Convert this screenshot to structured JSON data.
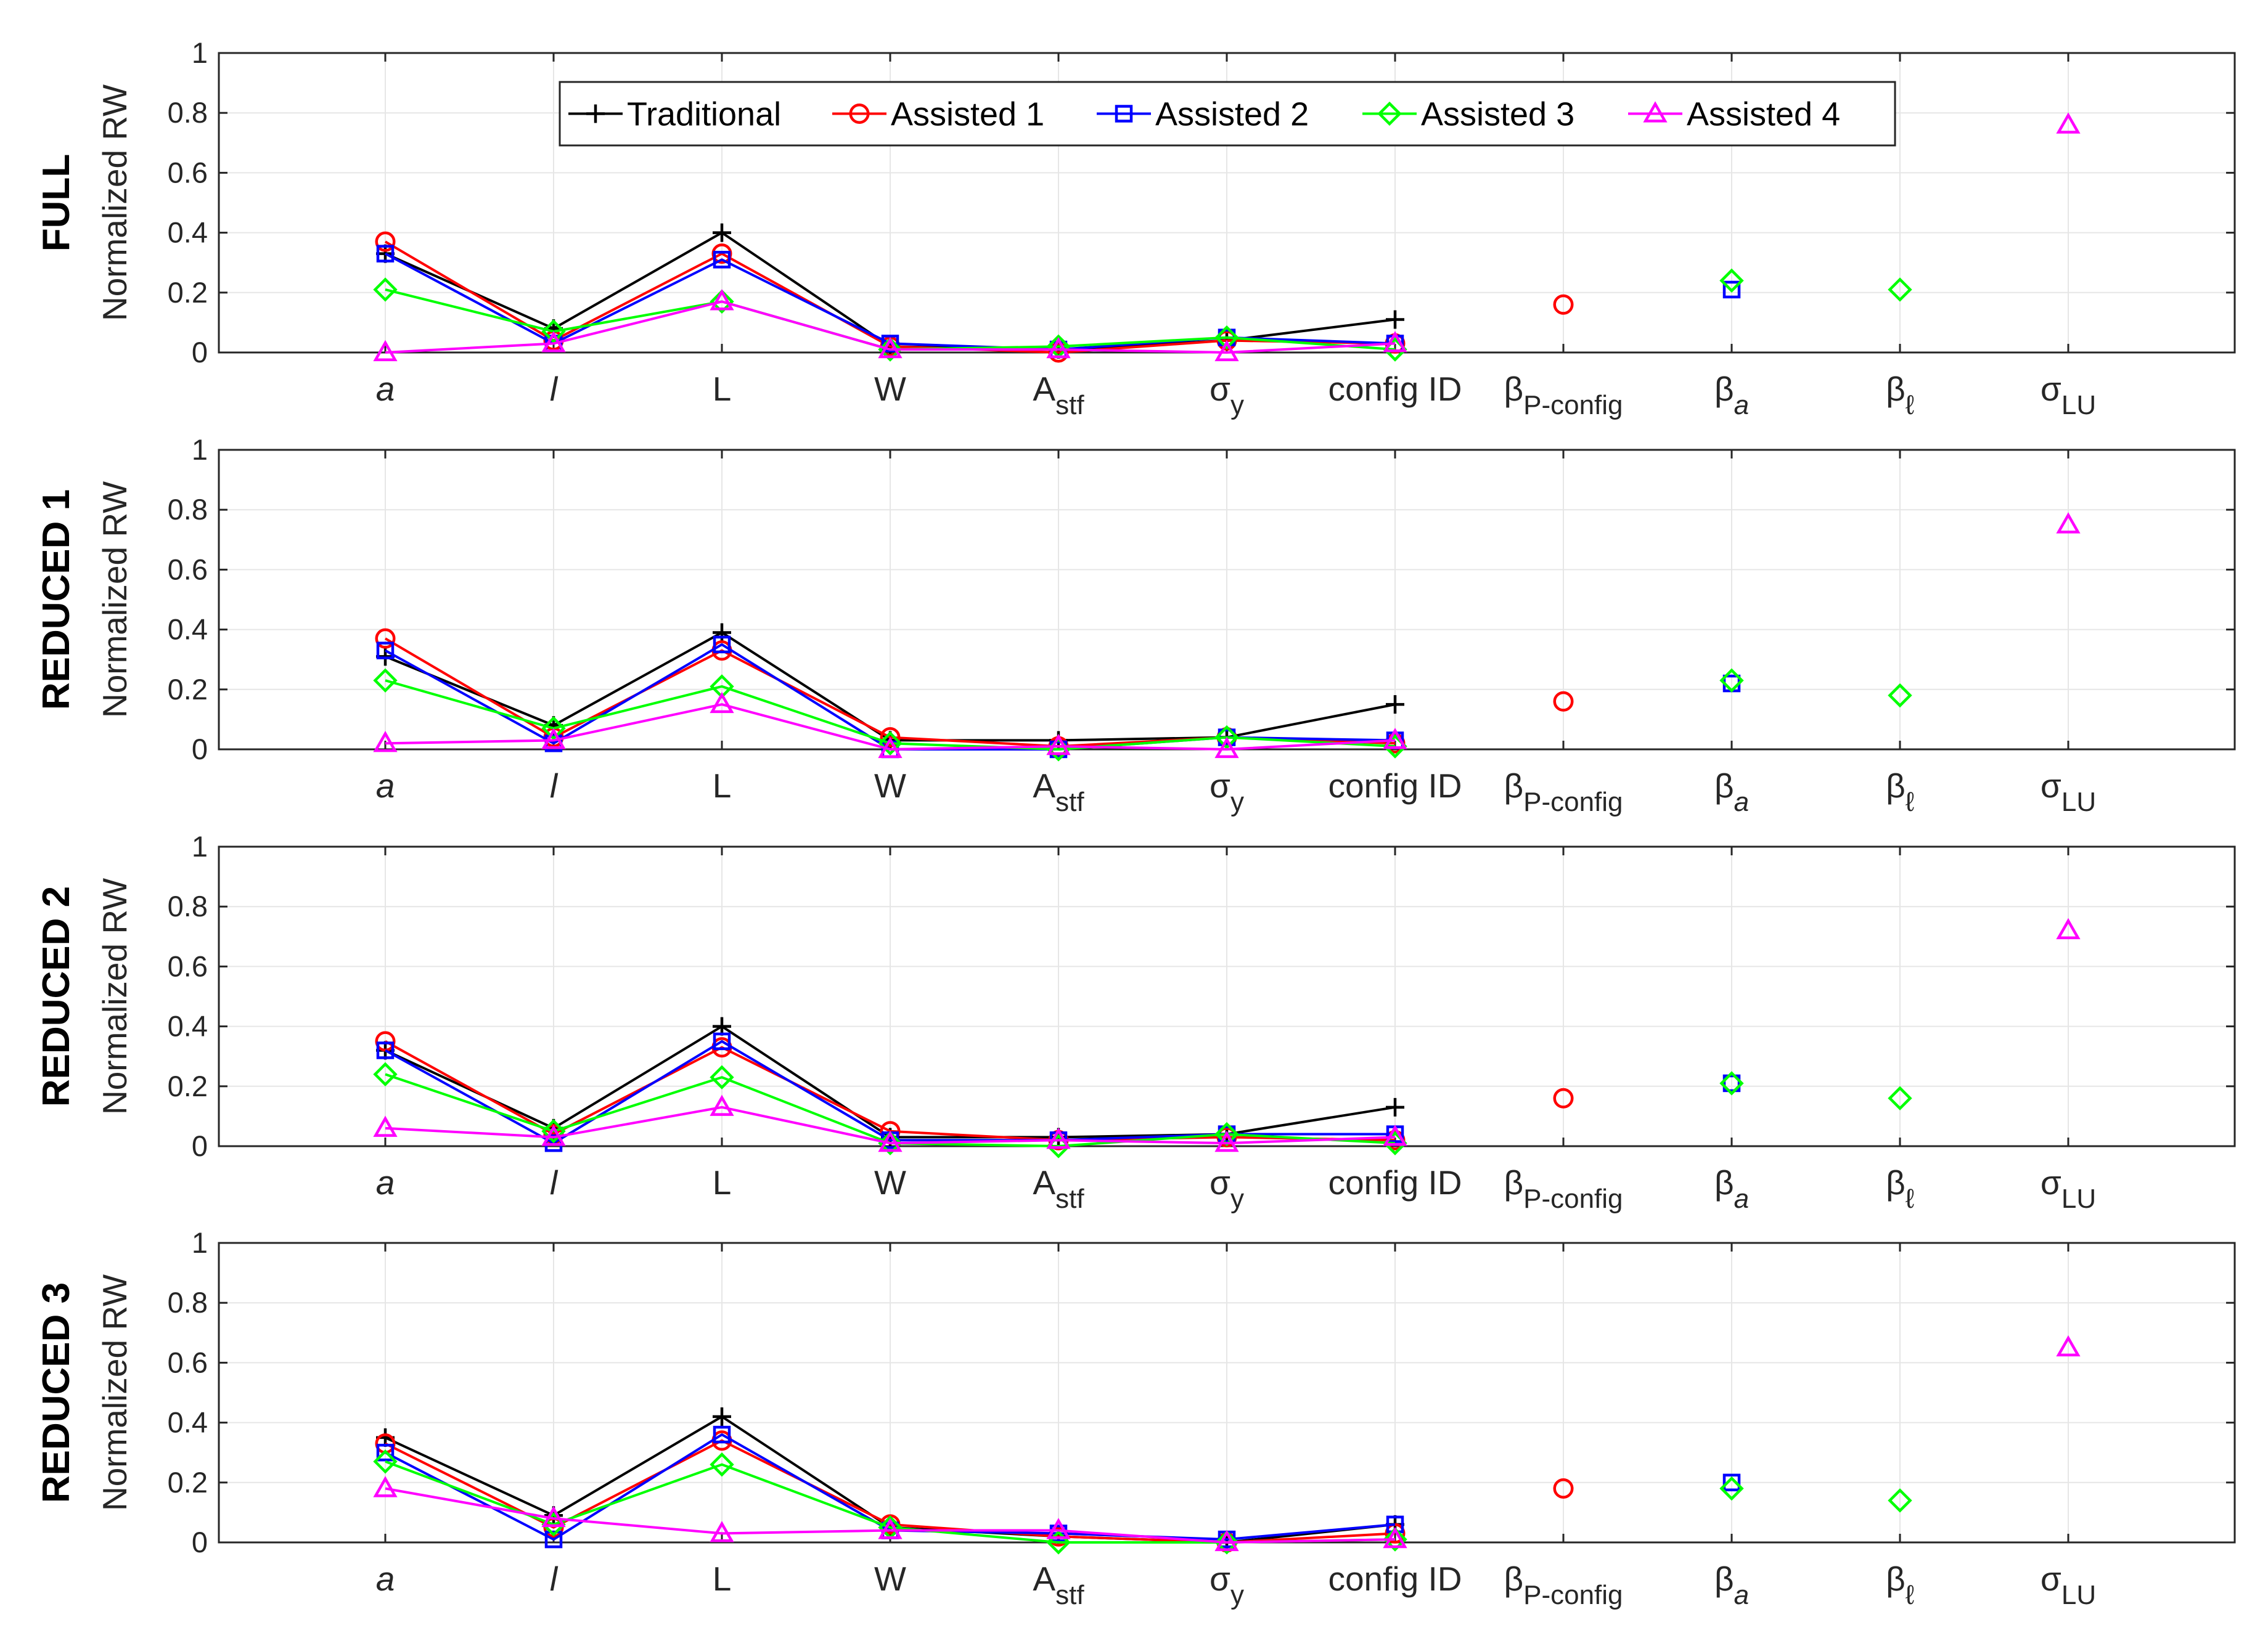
{
  "chart_data": {
    "type": "line",
    "ylabel": "Normalized RW",
    "ylim": [
      0,
      1
    ],
    "yticks": [
      "0",
      "0.2",
      "0.4",
      "0.6",
      "0.8",
      "1"
    ],
    "grid": true,
    "legend": {
      "placement": "top-center",
      "entries": [
        {
          "name": "Traditional",
          "color": "#000000",
          "marker": "plus"
        },
        {
          "name": "Assisted 1",
          "color": "#ff0000",
          "marker": "circle"
        },
        {
          "name": "Assisted 2",
          "color": "#0000ff",
          "marker": "square"
        },
        {
          "name": "Assisted 3",
          "color": "#00ff00",
          "marker": "diamond"
        },
        {
          "name": "Assisted 4",
          "color": "#ff00ff",
          "marker": "triangle"
        }
      ]
    },
    "categories": [
      {
        "main": "a",
        "sub": "",
        "italic": true
      },
      {
        "main": "l",
        "sub": "",
        "italic": true
      },
      {
        "main": "L",
        "sub": "",
        "italic": false
      },
      {
        "main": "W",
        "sub": "",
        "italic": false
      },
      {
        "main": "A",
        "sub": "stf",
        "italic": false
      },
      {
        "main": "σ",
        "sub": "y",
        "italic": false
      },
      {
        "main": "config ID",
        "sub": "",
        "italic": false
      },
      {
        "main": "β",
        "sub": "P-config",
        "italic": false
      },
      {
        "main": "β",
        "sub": "a",
        "italic": false,
        "subItalic": true
      },
      {
        "main": "β",
        "sub": "ℓ",
        "italic": false
      },
      {
        "main": "σ",
        "sub": "LU",
        "italic": false
      }
    ],
    "panels": [
      {
        "row_label": "FULL",
        "series": [
          {
            "name": "Traditional",
            "values": [
              0.33,
              0.08,
              0.4,
              0.02,
              0.01,
              0.04,
              0.11,
              null,
              null,
              null,
              null
            ]
          },
          {
            "name": "Assisted 1",
            "values": [
              0.37,
              0.04,
              0.33,
              0.02,
              0.0,
              0.04,
              0.03,
              0.16,
              null,
              null,
              null
            ]
          },
          {
            "name": "Assisted 2",
            "values": [
              0.33,
              0.03,
              0.31,
              0.03,
              0.01,
              0.05,
              0.03,
              null,
              0.21,
              null,
              null
            ]
          },
          {
            "name": "Assisted 3",
            "values": [
              0.21,
              0.07,
              0.17,
              0.01,
              0.02,
              0.05,
              0.01,
              null,
              0.24,
              0.21,
              null
            ]
          },
          {
            "name": "Assisted 4",
            "values": [
              0.0,
              0.03,
              0.17,
              0.01,
              0.01,
              0.0,
              0.03,
              null,
              null,
              null,
              0.76
            ]
          }
        ]
      },
      {
        "row_label": "REDUCED 1",
        "series": [
          {
            "name": "Traditional",
            "values": [
              0.31,
              0.08,
              0.39,
              0.03,
              0.03,
              0.04,
              0.15,
              null,
              null,
              null,
              null
            ]
          },
          {
            "name": "Assisted 1",
            "values": [
              0.37,
              0.04,
              0.33,
              0.04,
              0.01,
              0.04,
              0.02,
              0.16,
              null,
              null,
              null
            ]
          },
          {
            "name": "Assisted 2",
            "values": [
              0.33,
              0.02,
              0.35,
              0.0,
              0.0,
              0.04,
              0.03,
              null,
              0.22,
              null,
              null
            ]
          },
          {
            "name": "Assisted 3",
            "values": [
              0.23,
              0.07,
              0.21,
              0.02,
              0.0,
              0.04,
              0.01,
              null,
              0.23,
              0.18,
              null
            ]
          },
          {
            "name": "Assisted 4",
            "values": [
              0.02,
              0.03,
              0.15,
              0.0,
              0.01,
              0.0,
              0.03,
              null,
              null,
              null,
              0.75
            ]
          }
        ]
      },
      {
        "row_label": "REDUCED 2",
        "series": [
          {
            "name": "Traditional",
            "values": [
              0.32,
              0.06,
              0.4,
              0.03,
              0.03,
              0.04,
              0.13,
              null,
              null,
              null,
              null
            ]
          },
          {
            "name": "Assisted 1",
            "values": [
              0.35,
              0.04,
              0.33,
              0.05,
              0.02,
              0.03,
              0.02,
              0.16,
              null,
              null,
              null
            ]
          },
          {
            "name": "Assisted 2",
            "values": [
              0.32,
              0.01,
              0.35,
              0.02,
              0.02,
              0.04,
              0.04,
              null,
              0.21,
              null,
              null
            ]
          },
          {
            "name": "Assisted 3",
            "values": [
              0.24,
              0.05,
              0.23,
              0.01,
              0.0,
              0.04,
              0.01,
              null,
              0.21,
              0.16,
              null
            ]
          },
          {
            "name": "Assisted 4",
            "values": [
              0.06,
              0.03,
              0.13,
              0.01,
              0.02,
              0.01,
              0.03,
              null,
              null,
              null,
              0.72
            ]
          }
        ]
      },
      {
        "row_label": "REDUCED 3",
        "series": [
          {
            "name": "Traditional",
            "values": [
              0.35,
              0.09,
              0.42,
              0.05,
              0.02,
              0.0,
              0.06,
              null,
              null,
              null,
              null
            ]
          },
          {
            "name": "Assisted 1",
            "values": [
              0.33,
              0.05,
              0.34,
              0.06,
              0.02,
              0.0,
              0.03,
              0.18,
              null,
              null,
              null
            ]
          },
          {
            "name": "Assisted 2",
            "values": [
              0.3,
              0.01,
              0.36,
              0.04,
              0.03,
              0.01,
              0.06,
              null,
              0.2,
              null,
              null
            ]
          },
          {
            "name": "Assisted 3",
            "values": [
              0.27,
              0.06,
              0.26,
              0.05,
              0.0,
              0.0,
              0.01,
              null,
              0.18,
              0.14,
              null
            ]
          },
          {
            "name": "Assisted 4",
            "values": [
              0.18,
              0.08,
              0.03,
              0.04,
              0.04,
              0.0,
              0.01,
              null,
              null,
              null,
              0.65
            ]
          }
        ]
      }
    ]
  }
}
